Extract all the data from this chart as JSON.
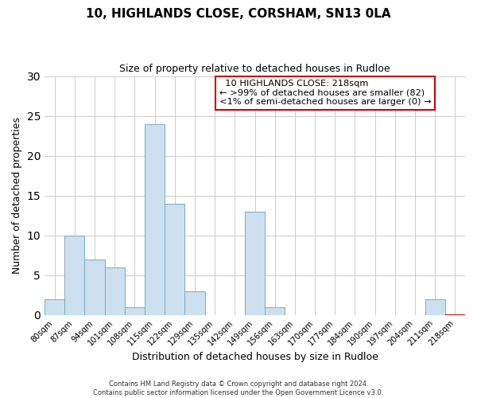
{
  "title": "10, HIGHLANDS CLOSE, CORSHAM, SN13 0LA",
  "subtitle": "Size of property relative to detached houses in Rudloe",
  "xlabel": "Distribution of detached houses by size in Rudloe",
  "ylabel": "Number of detached properties",
  "footer_line1": "Contains HM Land Registry data © Crown copyright and database right 2024.",
  "footer_line2": "Contains public sector information licensed under the Open Government Licence v3.0.",
  "bar_labels": [
    "80sqm",
    "87sqm",
    "94sqm",
    "101sqm",
    "108sqm",
    "115sqm",
    "122sqm",
    "129sqm",
    "135sqm",
    "142sqm",
    "149sqm",
    "156sqm",
    "163sqm",
    "170sqm",
    "177sqm",
    "184sqm",
    "190sqm",
    "197sqm",
    "204sqm",
    "211sqm",
    "218sqm"
  ],
  "bar_values": [
    2,
    10,
    7,
    6,
    1,
    24,
    14,
    3,
    0,
    0,
    13,
    1,
    0,
    0,
    0,
    0,
    0,
    0,
    0,
    2,
    0
  ],
  "bar_color": "#cce0f0",
  "bar_edge_color": "#7aaac8",
  "highlight_bar_index": 20,
  "highlight_bar_edge_color": "#cc0000",
  "ylim": [
    0,
    30
  ],
  "yticks": [
    0,
    5,
    10,
    15,
    20,
    25,
    30
  ],
  "annotation_line1": "  10 HIGHLANDS CLOSE: 218sqm",
  "annotation_line2": "← >99% of detached houses are smaller (82)",
  "annotation_line3": "<1% of semi-detached houses are larger (0) →",
  "annotation_edge_color": "#cc0000",
  "background_color": "#ffffff",
  "grid_color": "#cccccc"
}
